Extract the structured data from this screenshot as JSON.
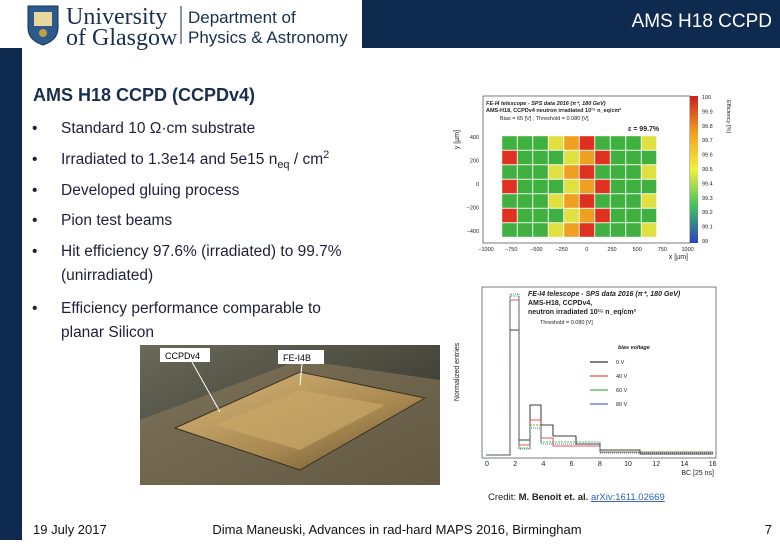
{
  "header": {
    "title": "AMS H18 CCPD",
    "logo": {
      "line1": "University",
      "line2": "of Glasgow",
      "dept1": "Department of",
      "dept2": "Physics & Astronomy"
    }
  },
  "slide": {
    "title": "AMS H18 CCPD (CCPDv4)",
    "bullets": [
      {
        "lines": [
          "Standard 10 Ω·cm substrate"
        ]
      },
      {
        "parts": [
          "Irradiated to 1.3e14 and 5e15 n",
          "eq",
          " / cm",
          "2"
        ]
      },
      {
        "lines": [
          "Developed gluing process"
        ]
      },
      {
        "lines": [
          "Pion test beams"
        ]
      },
      {
        "lines": [
          "Hit efficiency 97.6% (irradiated) to 99.7%",
          "(unirradiated)"
        ]
      },
      {
        "lines": [
          "Efficiency performance comparable to",
          "planar Silicon"
        ]
      }
    ]
  },
  "figures": {
    "efficiency_map": {
      "title_lines": [
        "FE-I4 telescope - SPS data 2016 (π⁺, 180 GeV)",
        "AMS-H18, CCPDv4 neutron irradiated 10¹⁵ n_eq/cm²",
        "Bias = 65 [V] ; Threshold = 0.080 [V]",
        "ε = 99.7%"
      ],
      "y_label": "y [µm]",
      "x_label": "x [µm]",
      "z_label": "Efficiency [%]",
      "yticks": [
        "400",
        "200",
        "0",
        "−200",
        "−400"
      ],
      "xticks": [
        "−1000",
        "−750",
        "−500",
        "−250",
        "0",
        "250",
        "500",
        "750",
        "1000"
      ],
      "zticks": [
        "100",
        "99.9",
        "99.8",
        "99.7",
        "99.6",
        "99.5",
        "99.4",
        "99.3",
        "99.2",
        "99.1",
        "99"
      ]
    },
    "timing_histogram": {
      "title_lines": [
        "FE-I4 telescope - SPS data 2016 (π⁺, 180 GeV)",
        "AMS-H18, CCPDv4,",
        "neutron irradiated 10¹⁵ n_eq/cm²",
        "Threshold = 0.080 [V]"
      ],
      "y_label": "Normalized entries",
      "x_label": "BC [25 ns]",
      "xticks": [
        "0",
        "2",
        "4",
        "6",
        "8",
        "10",
        "12",
        "14",
        "16"
      ],
      "legend_title": "bias voltage",
      "legend": [
        "0 V",
        "40 V",
        "60 V",
        "80 V"
      ]
    },
    "photo": {
      "labels": [
        "CCPDv4",
        "FE-I4B"
      ]
    }
  },
  "credit": {
    "prefix": "Credit:",
    "authors": "M. Benoit et. al.",
    "link": "arXiv:1611.02669"
  },
  "footer": {
    "date": "19 July 2017",
    "event": "Dima Maneuski, Advances in rad-hard MAPS 2016, Birmingham",
    "page": "7"
  }
}
